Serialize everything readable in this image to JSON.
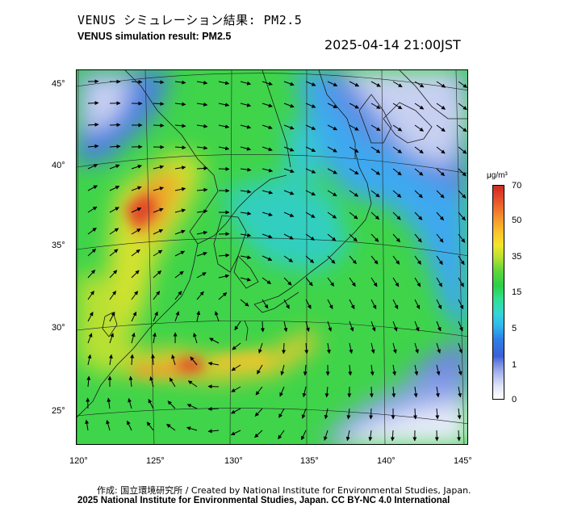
{
  "header": {
    "title_jp": "VENUS シミュレーション結果: PM2.5",
    "title_en": "VENUS simulation result: PM2.5",
    "timestamp": "2025-04-14 21:00JST"
  },
  "map": {
    "lon_ticks": [
      "120°",
      "125°",
      "130°",
      "135°",
      "140°",
      "145°"
    ],
    "lat_ticks": [
      "45°",
      "40°",
      "35°",
      "30°",
      "25°"
    ],
    "colors": {
      "land_outline": "#1a1a1a",
      "arrow": "#000000",
      "grid": "#222222"
    }
  },
  "colorbar": {
    "unit": "μg/m³",
    "labels": [
      "70",
      "50",
      "35",
      "15",
      "5",
      "1",
      "0"
    ],
    "stops": [
      "#ffffff",
      "#6f86e0",
      "#30b6f0",
      "#2bcf49",
      "#f2e62a",
      "#f69a2c",
      "#cf2a22"
    ]
  },
  "footer": {
    "credit": "作成: 国立環境研究所 / Created by National Institute for Environmental Studies, Japan.",
    "license": "2025 National Institute for Environmental Studies, Japan. CC BY-NC 4.0 International"
  }
}
